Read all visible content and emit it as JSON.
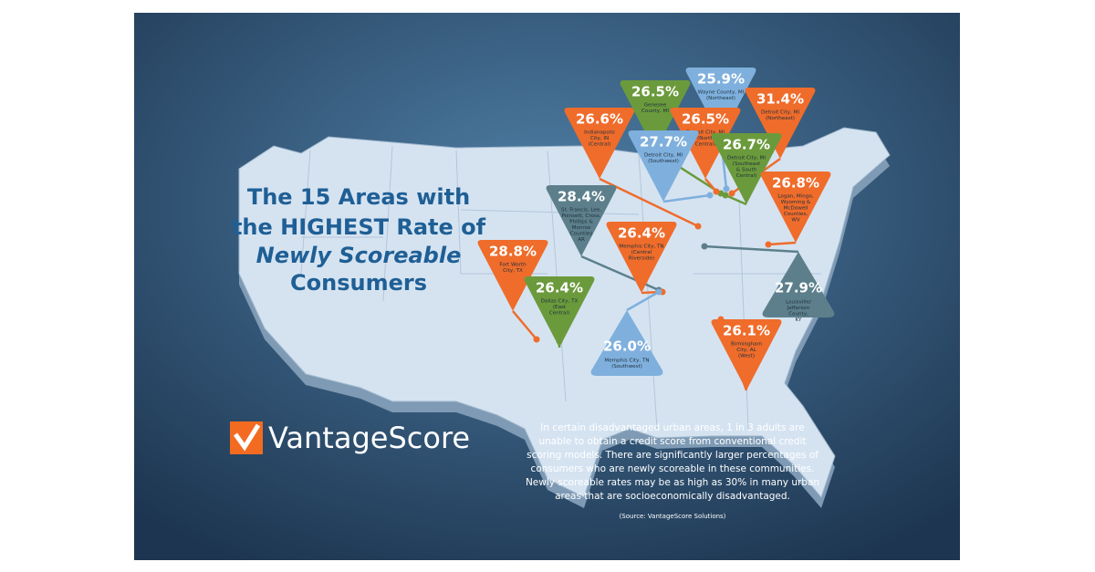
{
  "title": {
    "lines": [
      "The 15 Areas with",
      "the HIGHEST Rate of",
      "Newly Scoreable",
      "Consumers"
    ]
  },
  "pins": [
    {
      "value": "26.6%",
      "label": [
        "Indianapolis",
        "City, IN",
        "(Central)"
      ]
    },
    {
      "value": "26.5%",
      "label": [
        "Genesee",
        "County, MI"
      ]
    },
    {
      "value": "25.9%",
      "label": [
        "Wayne County, MI",
        "(Northeast)"
      ]
    },
    {
      "value": "31.4%",
      "label": [
        "Detroit City, MI",
        "(Northeast)"
      ]
    },
    {
      "value": "26.5%",
      "label": [
        "Detroit City, MI",
        "(North",
        "Central)"
      ]
    },
    {
      "value": "27.7%",
      "label": [
        "Detroit City, MI",
        "(Southwest)"
      ]
    },
    {
      "value": "26.7%",
      "label": [
        "Detroit City, MI",
        "(Southeast",
        "& South",
        "Central)"
      ]
    },
    {
      "value": "26.8%",
      "label": [
        "Logan, Mingo,",
        "Wyoming &",
        "McDowell",
        "Counties,",
        "WV"
      ]
    },
    {
      "value": "28.4%",
      "label": [
        "St. Francis, Lee,",
        "Poinsett, Cross,",
        "Phillips &",
        "Monroe",
        "Counties",
        "AR"
      ]
    },
    {
      "value": "26.4%",
      "label": [
        "Memphis City, TN",
        "(Central",
        "Riverside)"
      ]
    },
    {
      "value": "28.8%",
      "label": [
        "Fort Worth",
        "City, TX"
      ]
    },
    {
      "value": "26.4%",
      "label": [
        "Dallas City, TX",
        "(East",
        "Central)"
      ]
    },
    {
      "value": "26.0%",
      "label": [
        "Memphis City, TN",
        "(Southwest)"
      ]
    },
    {
      "value": "27.9%",
      "label": [
        "Louisville/",
        "Jefferson",
        "County,",
        "KY"
      ]
    },
    {
      "value": "26.1%",
      "label": [
        "Birmingham",
        "City, AL",
        "(West)"
      ]
    }
  ],
  "logo": "VantageScore",
  "description": [
    "In certain disadvantaged urban areas, 1 in 3 adults are",
    "unable to obtain a credit score from conventional credit",
    "scoring models. There are significantly larger percentages of",
    "consumers who are newly scoreable in these communities.",
    "Newly scoreable rates may be as high as 30% in many urban",
    "areas that are socioeconomically disadvantaged."
  ],
  "source": "(Source: VantageScore Solutions)"
}
